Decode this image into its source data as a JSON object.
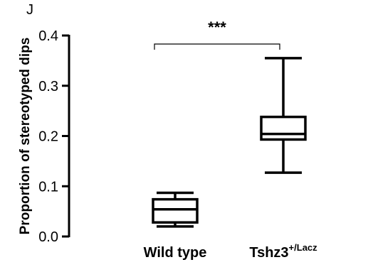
{
  "panel_label": "J",
  "chart_data": {
    "type": "box",
    "title": "",
    "xlabel": "",
    "ylabel": "Proportion of stereotyped dips",
    "ylim": [
      0,
      0.4
    ],
    "yticks": [
      0.0,
      0.1,
      0.2,
      0.3,
      0.4
    ],
    "ytick_labels": [
      "0.0",
      "0.1",
      "0.2",
      "0.3",
      "0.4"
    ],
    "categories": [
      "Wild type",
      "Tshz3+/Lacz"
    ],
    "category_labels": [
      {
        "main": "Wild type",
        "sup": ""
      },
      {
        "main": "Tshz3",
        "sup": "+/Lacz"
      }
    ],
    "boxes": [
      {
        "name": "Wild type",
        "min": 0.02,
        "q1": 0.028,
        "median": 0.054,
        "q3": 0.074,
        "max": 0.087
      },
      {
        "name": "Tshz3+/Lacz",
        "min": 0.127,
        "q1": 0.193,
        "median": 0.204,
        "q3": 0.238,
        "max": 0.355
      }
    ],
    "annotations": [
      {
        "type": "significance",
        "text": "***",
        "between": [
          "Wild type",
          "Tshz3+/Lacz"
        ],
        "y": 0.385
      }
    ],
    "grid": false,
    "legend": "none"
  }
}
